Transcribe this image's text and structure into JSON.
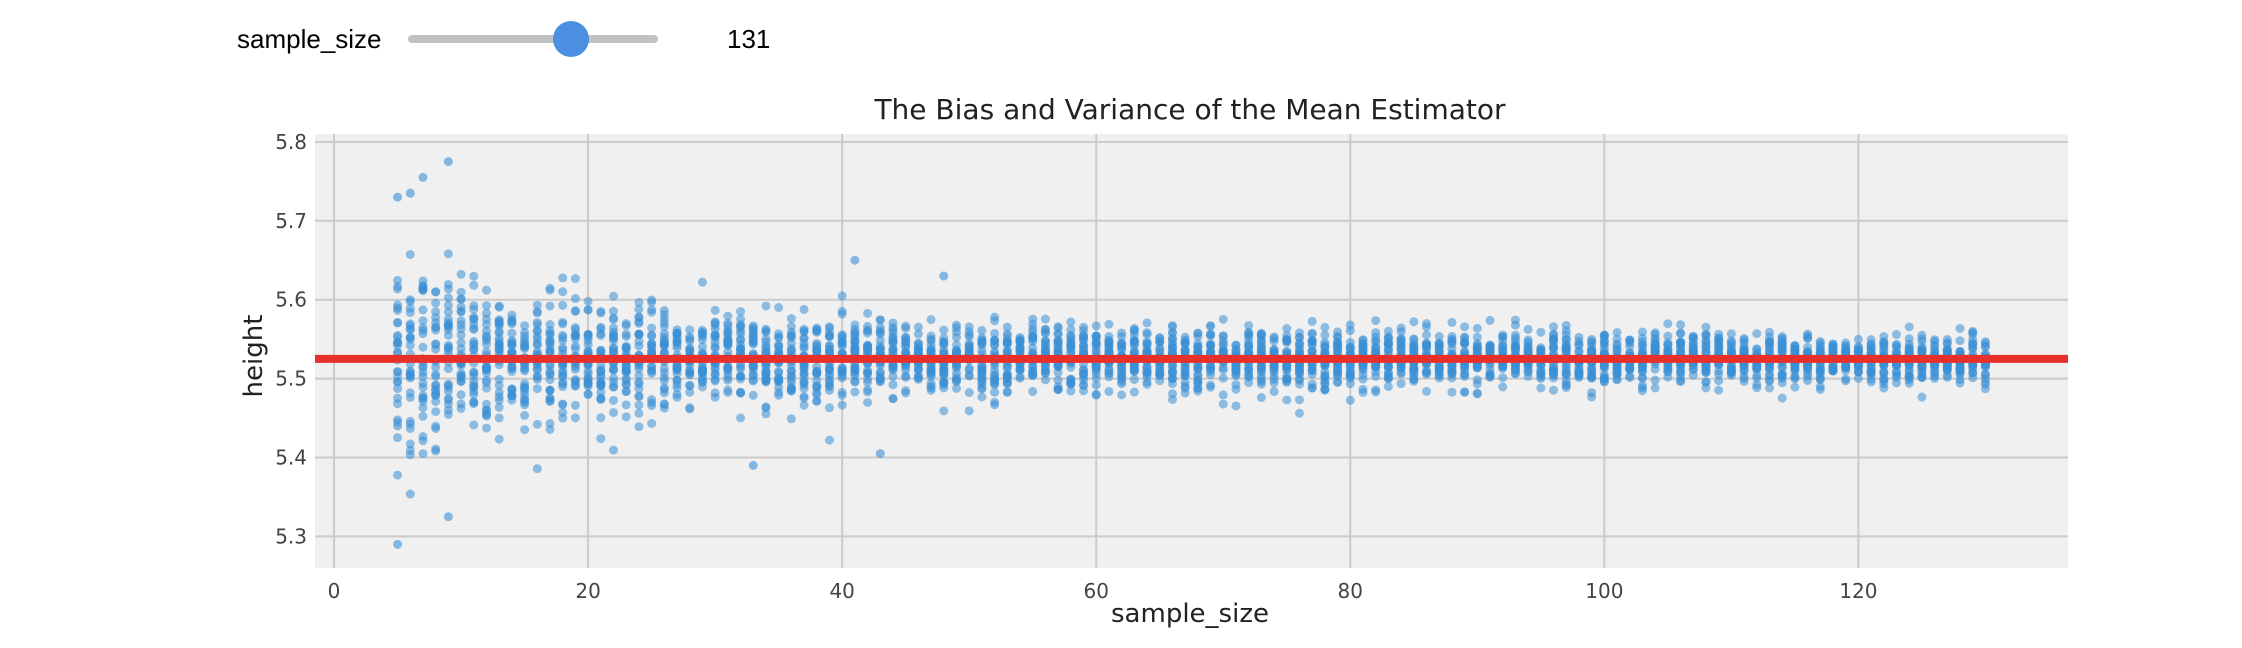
{
  "widget": {
    "slider_label": "sample_size",
    "slider_value": 131,
    "slider_min": 1,
    "slider_max": 200,
    "readout": "131",
    "track_color": "#c2c2c2",
    "thumb_color": "#4a8fe0"
  },
  "chart_data": {
    "type": "scatter",
    "title": "The Bias and Variance of the Mean Estimator",
    "xlabel": "sample_size",
    "ylabel": "height",
    "xlim": [
      -1.5,
      136.5
    ],
    "ylim": [
      5.26,
      5.81
    ],
    "xticks": [
      0,
      20,
      40,
      60,
      80,
      100,
      120
    ],
    "yticks": [
      5.3,
      5.4,
      5.5,
      5.6,
      5.7,
      5.8
    ],
    "xtick_labels": [
      "0",
      "20",
      "40",
      "60",
      "80",
      "100",
      "120"
    ],
    "ytick_labels": [
      "5.3",
      "5.4",
      "5.5",
      "5.6",
      "5.7",
      "5.8"
    ],
    "grid": true,
    "legend": "none",
    "background_color": "#f0f0f0",
    "grid_color": "#cbcbcb",
    "point_color": "#3a8fd6",
    "line_color": "#e8302b",
    "series": [
      {
        "kind": "scatter",
        "x_min": 5,
        "x_max": 130,
        "points_per_x": 30,
        "center": 5.525,
        "std_at_n5": 0.13,
        "note_spread": "spread shrinks roughly as 1/sqrt(sample_size)",
        "highlight_points": [
          {
            "x": 5,
            "y": 5.29
          },
          {
            "x": 5,
            "y": 5.73
          },
          {
            "x": 6,
            "y": 5.735
          },
          {
            "x": 7,
            "y": 5.755
          },
          {
            "x": 9,
            "y": 5.775
          },
          {
            "x": 9,
            "y": 5.325
          },
          {
            "x": 33,
            "y": 5.39
          },
          {
            "x": 41,
            "y": 5.65
          },
          {
            "x": 43,
            "y": 5.405
          },
          {
            "x": 48,
            "y": 5.63
          }
        ]
      },
      {
        "kind": "hline",
        "y": 5.525,
        "x_range": [
          -1.5,
          136.5
        ]
      }
    ]
  }
}
